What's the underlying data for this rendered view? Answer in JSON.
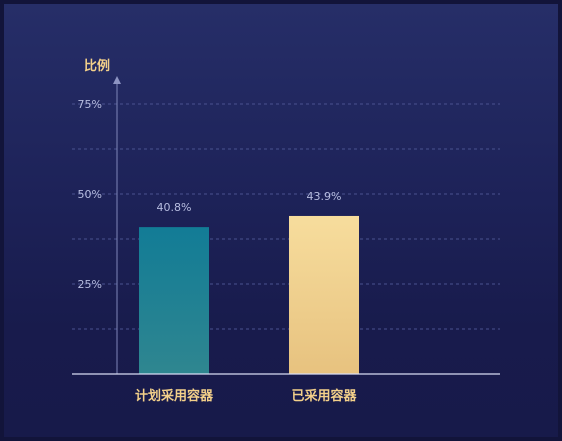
{
  "chart_data": {
    "type": "bar",
    "ylabel": "比例",
    "categories": [
      "计划采用容器",
      "已采用容器"
    ],
    "values": [
      40.8,
      43.9
    ],
    "data_labels": [
      "40.8%",
      "43.9%"
    ],
    "yticks": [
      {
        "value": 25,
        "label": "25%"
      },
      {
        "value": 50,
        "label": "50%"
      },
      {
        "value": 75,
        "label": "75%"
      }
    ],
    "gridlines": [
      12.5,
      25,
      37.5,
      50,
      62.5,
      75
    ],
    "ylim": [
      0,
      82
    ],
    "grid": true
  },
  "colors": {
    "label_gold": "#f3d08a",
    "tick_text": "#b7bde0",
    "axis": "#d8dcf2",
    "grid": "#4a5290",
    "bar1_top": "#127c96",
    "bar1_bottom": "#2f8690",
    "bar2_top": "#f7dd9d",
    "bar2_bottom": "#e7c27f"
  }
}
